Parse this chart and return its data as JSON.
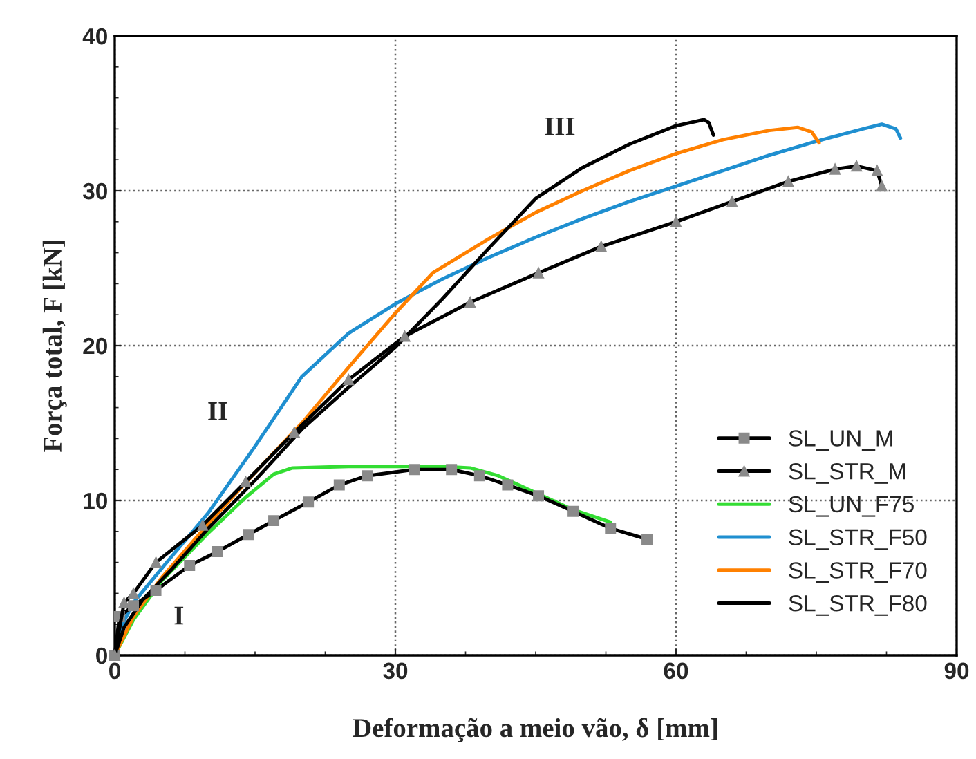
{
  "chart_data": {
    "type": "line",
    "xlabel": "Deformação a meio vão, δ [mm]",
    "ylabel": "Força total, F [kN]",
    "xlim": [
      0,
      90
    ],
    "xticks": [
      0,
      30,
      60,
      90
    ],
    "ylim": [
      0,
      40
    ],
    "yticks": [
      0,
      10,
      20,
      30,
      40
    ],
    "grid": true,
    "legend": "bottom right",
    "line_style": "solid",
    "annotations": [
      "I",
      "II",
      "III"
    ],
    "series": [
      {
        "name": "SL_UN_M",
        "color": "#000000",
        "marker": "square",
        "x": [
          0,
          0.5,
          2,
          4.4,
          8,
          11,
          14.3,
          17,
          20.7,
          24,
          27,
          32,
          36,
          39,
          42,
          45.3,
          49,
          53,
          56.9
        ],
        "values": [
          0,
          2.5,
          3.2,
          4.2,
          5.8,
          6.7,
          7.8,
          8.7,
          9.9,
          11,
          11.6,
          12,
          12,
          11.6,
          11,
          10.3,
          9.3,
          8.2,
          7.5
        ]
      },
      {
        "name": "SL_STR_M",
        "color": "#000000",
        "marker": "triangle",
        "x": [
          0,
          1,
          2,
          4.4,
          9.4,
          14,
          19.2,
          25,
          31,
          38,
          45.3,
          52,
          60,
          66,
          72,
          77,
          79.3,
          81.5,
          82
        ],
        "values": [
          0,
          3.4,
          4,
          6,
          8.4,
          11.2,
          14.4,
          17.8,
          20.6,
          22.8,
          24.7,
          26.4,
          28,
          29.3,
          30.6,
          31.4,
          31.6,
          31.3,
          30.3
        ]
      },
      {
        "name": "SL_UN_F75",
        "color": "#33dd33",
        "marker": "none",
        "x": [
          0,
          2,
          5,
          10,
          14,
          17,
          19,
          25,
          30,
          35,
          38,
          41,
          45,
          49,
          53
        ],
        "values": [
          0,
          2.3,
          4.8,
          7.9,
          10.2,
          11.7,
          12.1,
          12.2,
          12.2,
          12.2,
          12.1,
          11.6,
          10.5,
          9.4,
          8.6
        ]
      },
      {
        "name": "SL_STR_F50",
        "color": "#1f8fd0",
        "marker": "none",
        "x": [
          0,
          1,
          2,
          5,
          10,
          15,
          20,
          25,
          30,
          35,
          40,
          45,
          50,
          55,
          60,
          65,
          70,
          75,
          80,
          82,
          83.5,
          84
        ],
        "values": [
          0,
          2.2,
          3.4,
          5.6,
          9.2,
          13.5,
          18,
          20.8,
          22.7,
          24.3,
          25.7,
          27,
          28.2,
          29.3,
          30.3,
          31.3,
          32.3,
          33.2,
          34,
          34.3,
          34,
          33.4
        ]
      },
      {
        "name": "SL_STR_F70",
        "color": "#ff8000",
        "marker": "none",
        "x": [
          0,
          2,
          5,
          10,
          15,
          20,
          25,
          30,
          34,
          40,
          45,
          50,
          55,
          60,
          65,
          70,
          73,
          74.5,
          75.3
        ],
        "values": [
          0,
          2.5,
          5,
          8.5,
          11.8,
          15,
          18.6,
          22.1,
          24.7,
          26.9,
          28.6,
          30,
          31.3,
          32.4,
          33.3,
          33.9,
          34.1,
          33.8,
          33.1
        ]
      },
      {
        "name": "SL_STR_F80",
        "color": "#000000",
        "marker": "none",
        "x": [
          0,
          1,
          3,
          6,
          10,
          15,
          20,
          25,
          30,
          35,
          40,
          45,
          50,
          55,
          60,
          63,
          63.5,
          64
        ],
        "values": [
          0,
          1.8,
          3.6,
          5.5,
          8.2,
          11.3,
          14.6,
          17.3,
          19.9,
          23,
          26.3,
          29.5,
          31.5,
          33,
          34.2,
          34.6,
          34.4,
          33.6
        ]
      }
    ]
  }
}
